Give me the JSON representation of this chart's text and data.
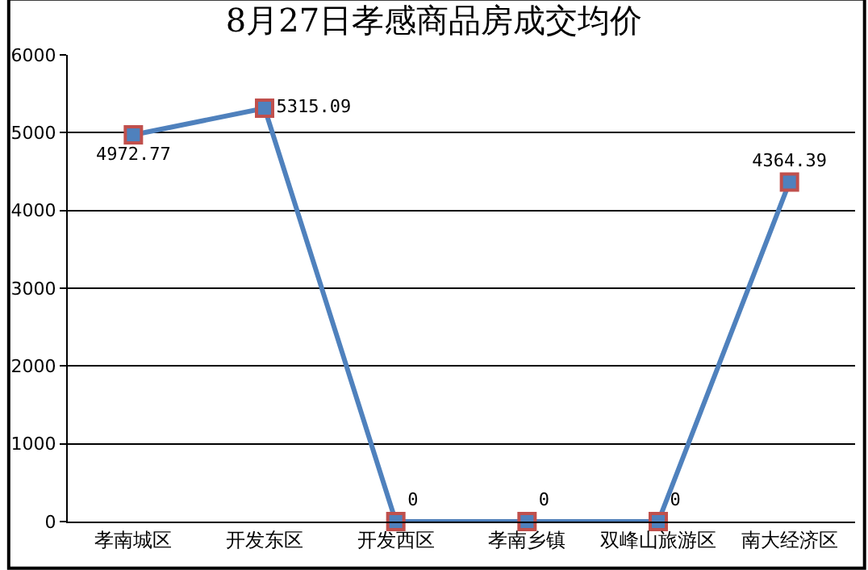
{
  "chart_data": {
    "type": "line",
    "title": "8月27日孝感商品房成交均价",
    "categories": [
      "孝南城区",
      "开发东区",
      "开发西区",
      "孝南乡镇",
      "双峰山旅游区",
      "南大经济区"
    ],
    "series": [
      {
        "color": "#4f81bd",
        "values": [
          4972.77,
          5315.09,
          0,
          0,
          0,
          4364.39
        ]
      }
    ],
    "ylim": [
      0,
      6000
    ],
    "yticks": [
      0,
      1000,
      2000,
      3000,
      4000,
      5000,
      6000
    ],
    "grid": "y",
    "legend": false,
    "marker": "square",
    "line_style": "solid",
    "data_labels": true
  }
}
